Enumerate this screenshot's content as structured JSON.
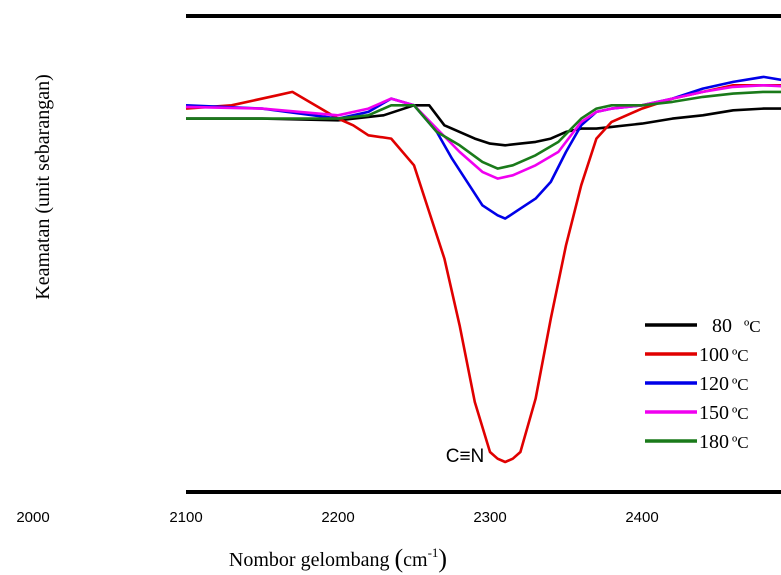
{
  "chart_data": {
    "type": "line",
    "xlabel": "Nombor gelombang",
    "xlabel_unit_base": "cm",
    "xlabel_unit_exp": "-1",
    "ylabel": "Keamatan (unit sebarangan)",
    "xlim": [
      2000,
      2500
    ],
    "x_ticks": [
      2000,
      2100,
      2200,
      2300,
      2400
    ],
    "annotation": "C≡N",
    "legend_position": "lower-right",
    "series": [
      {
        "name": "80",
        "unit": "ºC",
        "color": "#000000",
        "x": [
          2100,
          2150,
          2200,
          2230,
          2250,
          2260,
          2270,
          2280,
          2290,
          2300,
          2310,
          2320,
          2330,
          2340,
          2350,
          2360,
          2370,
          2380,
          2400,
          2420,
          2440,
          2460,
          2480,
          2500
        ],
        "y": [
          100,
          100,
          99.5,
          101,
          104,
          104,
          98,
          96,
          94,
          92.5,
          92,
          92.5,
          93,
          94,
          96,
          97,
          97,
          97.5,
          98.5,
          100,
          101,
          102.5,
          103,
          103
        ]
      },
      {
        "name": "100",
        "unit": "ºC",
        "color": "#e00000",
        "x": [
          2100,
          2130,
          2160,
          2170,
          2200,
          2210,
          2220,
          2235,
          2250,
          2260,
          2270,
          2280,
          2290,
          2300,
          2305,
          2310,
          2315,
          2320,
          2330,
          2340,
          2350,
          2360,
          2370,
          2380,
          2400,
          2420,
          2440,
          2460,
          2480,
          2500
        ],
        "y": [
          103,
          104,
          107,
          108,
          100,
          98,
          95,
          94,
          86,
          72,
          58,
          38,
          15,
          0,
          -2,
          -3,
          -2,
          0,
          16,
          40,
          62,
          80,
          94,
          99,
          103,
          106,
          108,
          110,
          110,
          110
        ]
      },
      {
        "name": "120",
        "unit": "ºC",
        "color": "#0000e8",
        "x": [
          2100,
          2150,
          2200,
          2220,
          2235,
          2250,
          2265,
          2275,
          2285,
          2295,
          2305,
          2310,
          2320,
          2330,
          2340,
          2350,
          2360,
          2370,
          2380,
          2400,
          2420,
          2440,
          2460,
          2480,
          2500
        ],
        "y": [
          104,
          103,
          100,
          102,
          106,
          104,
          96,
          88,
          81,
          74,
          71,
          70,
          73,
          76,
          81,
          90,
          98,
          102,
          103,
          104,
          106,
          109,
          111,
          112.5,
          111
        ]
      },
      {
        "name": "150",
        "unit": "ºC",
        "color": "#f000f0",
        "x": [
          2100,
          2150,
          2200,
          2220,
          2235,
          2250,
          2265,
          2280,
          2295,
          2305,
          2315,
          2330,
          2345,
          2360,
          2370,
          2380,
          2400,
          2420,
          2440,
          2460,
          2480,
          2500
        ],
        "y": [
          103.5,
          103,
          101,
          103,
          106,
          104,
          97,
          90,
          84,
          82,
          83,
          86,
          90,
          99,
          102,
          103,
          104,
          106,
          108,
          109.5,
          110,
          109.5
        ]
      },
      {
        "name": "180",
        "unit": "ºC",
        "color": "#1a7a1a",
        "x": [
          2100,
          2150,
          2200,
          2220,
          2235,
          2250,
          2265,
          2280,
          2295,
          2305,
          2315,
          2330,
          2345,
          2360,
          2370,
          2380,
          2400,
          2420,
          2440,
          2460,
          2480,
          2500
        ],
        "y": [
          100,
          100,
          100,
          101,
          104,
          104,
          96,
          92,
          87,
          85,
          86,
          89,
          93,
          100,
          103,
          104,
          104,
          105,
          106.5,
          107.5,
          108,
          108
        ]
      }
    ]
  }
}
